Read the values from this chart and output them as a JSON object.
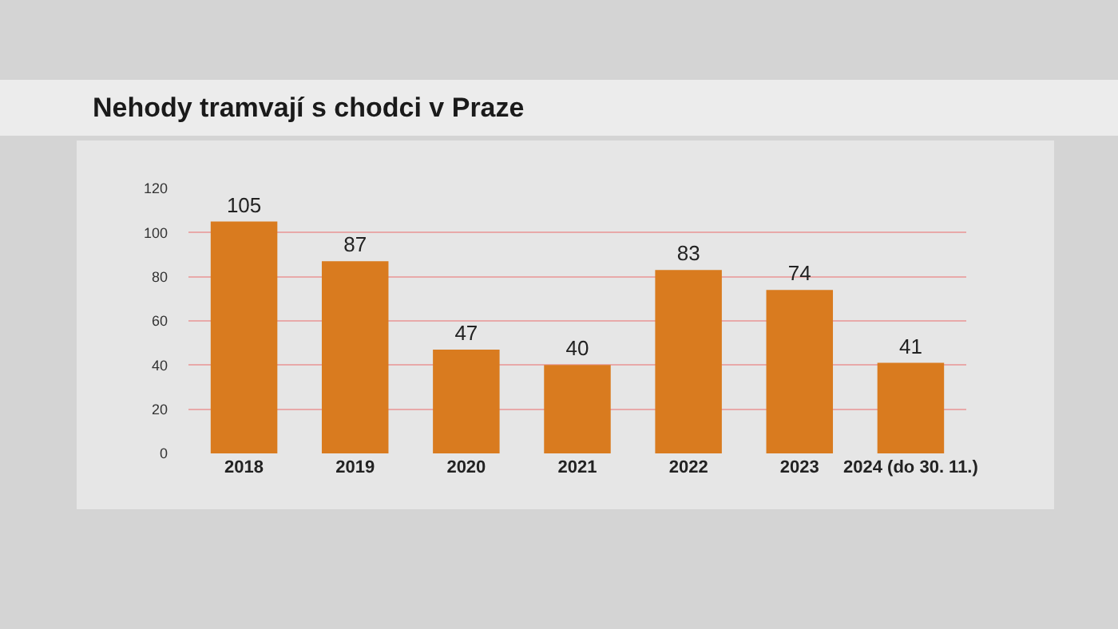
{
  "chart_data": {
    "type": "bar",
    "title": "Nehody tramvají s chodci v Praze",
    "categories": [
      "2018",
      "2019",
      "2020",
      "2021",
      "2022",
      "2023",
      "2024 (do 30. 11.)"
    ],
    "values": [
      105,
      87,
      47,
      40,
      83,
      74,
      41
    ],
    "color": "#d97b1f",
    "ylim": [
      0,
      120
    ],
    "yticks": [
      0,
      20,
      40,
      60,
      80,
      100,
      120
    ],
    "grid": "y",
    "data_labels": true
  }
}
